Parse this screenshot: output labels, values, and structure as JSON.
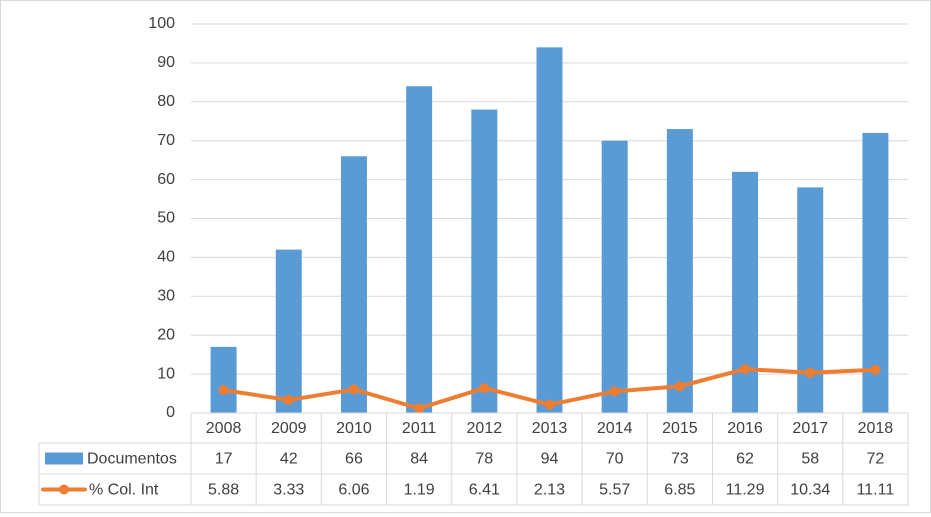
{
  "chart_data": {
    "type": "bar",
    "title": "",
    "xlabel": "",
    "ylabel": "",
    "ylim": [
      0,
      100
    ],
    "yticks": [
      0,
      10,
      20,
      30,
      40,
      50,
      60,
      70,
      80,
      90,
      100
    ],
    "grid": true,
    "legend_placement": "data-table-left",
    "categories": [
      "2008",
      "2009",
      "2010",
      "2011",
      "2012",
      "2013",
      "2014",
      "2015",
      "2016",
      "2017",
      "2018"
    ],
    "series": [
      {
        "name": "Documentos",
        "kind": "bar",
        "color": "#5b9bd5",
        "values": [
          17,
          42,
          66,
          84,
          78,
          94,
          70,
          73,
          62,
          58,
          72
        ],
        "labels": [
          "17",
          "42",
          "66",
          "84",
          "78",
          "94",
          "70",
          "73",
          "62",
          "58",
          "72"
        ]
      },
      {
        "name": "% Col. Int",
        "kind": "line",
        "color": "#ed7d31",
        "values": [
          5.88,
          3.33,
          6.06,
          1.19,
          6.41,
          2.13,
          5.57,
          6.85,
          11.29,
          10.34,
          11.11
        ],
        "labels": [
          "5.88",
          "3.33",
          "6.06",
          "1.19",
          "6.41",
          "2.13",
          "5.57",
          "6.85",
          "11.29",
          "10.34",
          "11.11"
        ]
      }
    ]
  }
}
